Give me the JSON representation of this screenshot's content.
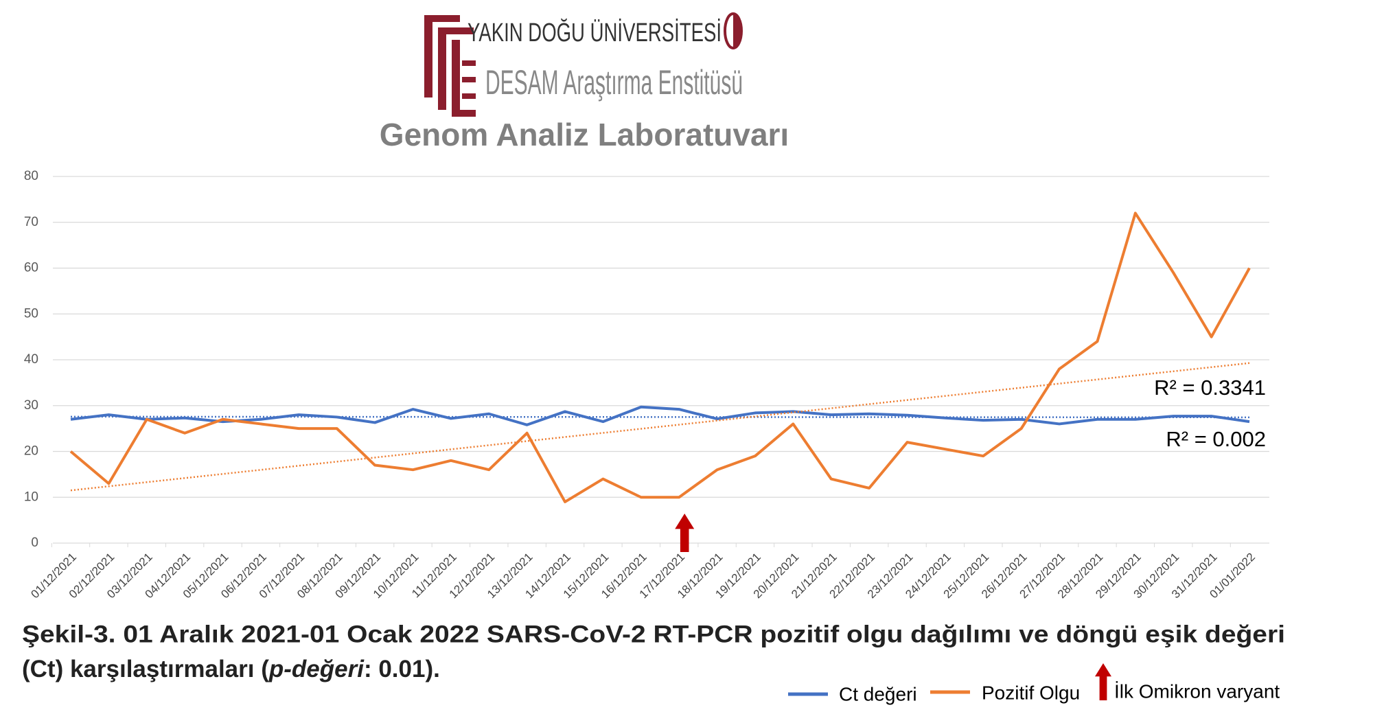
{
  "header": {
    "university": "YAKIN DOĞU ÜNİVERSİTESİ",
    "institute": "DESAM Araştırma Enstitüsü",
    "lab": "Genom Analiz Laboratuvarı"
  },
  "chart_data": {
    "type": "line",
    "categories": [
      "01/12/2021",
      "02/12/2021",
      "03/12/2021",
      "04/12/2021",
      "05/12/2021",
      "06/12/2021",
      "07/12/2021",
      "08/12/2021",
      "09/12/2021",
      "10/12/2021",
      "11/12/2021",
      "12/12/2021",
      "13/12/2021",
      "14/12/2021",
      "15/12/2021",
      "16/12/2021",
      "17/12/2021",
      "18/12/2021",
      "19/12/2021",
      "20/12/2021",
      "21/12/2021",
      "22/12/2021",
      "23/12/2021",
      "24/12/2021",
      "25/12/2021",
      "26/12/2021",
      "27/12/2021",
      "28/12/2021",
      "29/12/2021",
      "30/12/2021",
      "31/12/2021",
      "01/01/2022"
    ],
    "series": [
      {
        "name": "Ct değeri",
        "color": "#4472c4",
        "values": [
          27,
          28,
          27,
          27.3,
          26.5,
          27,
          28,
          27.5,
          26.3,
          29.2,
          27.2,
          28.2,
          25.8,
          28.7,
          26.5,
          29.7,
          29.2,
          27.1,
          28.4,
          28.7,
          28,
          28.2,
          27.9,
          27.3,
          26.8,
          27,
          26,
          27,
          27,
          27.7,
          27.7,
          26.5
        ],
        "r2_label": "R² = 0.002"
      },
      {
        "name": "Pozitif Olgu",
        "color": "#ed7d31",
        "values": [
          20,
          13,
          27,
          24,
          27,
          26,
          25,
          25,
          17,
          16,
          18,
          16,
          24,
          9,
          14,
          10,
          10,
          16,
          19,
          26,
          14,
          12,
          22,
          20.5,
          19,
          25,
          38,
          44,
          72,
          59,
          45,
          60
        ],
        "r2_label": "R² = 0.3341"
      }
    ],
    "annotation_legend": "İlk Omikron varyant",
    "annotation_color": "#c00000",
    "ylim": [
      0,
      80
    ],
    "yticks": [
      0,
      10,
      20,
      30,
      40,
      50,
      60,
      70,
      80
    ],
    "grid": true,
    "trendlines": true,
    "caption": {
      "line1": "Şekil-3. 01 Aralık 2021-01 Ocak 2022 SARS-CoV-2 RT-PCR pozitif olgu dağılımı ve döngü eşik değeri",
      "line2_start": "(Ct) karşılaştırmaları (",
      "line2_italic": "p-değeri",
      "line2_end": ": 0.01)."
    }
  }
}
